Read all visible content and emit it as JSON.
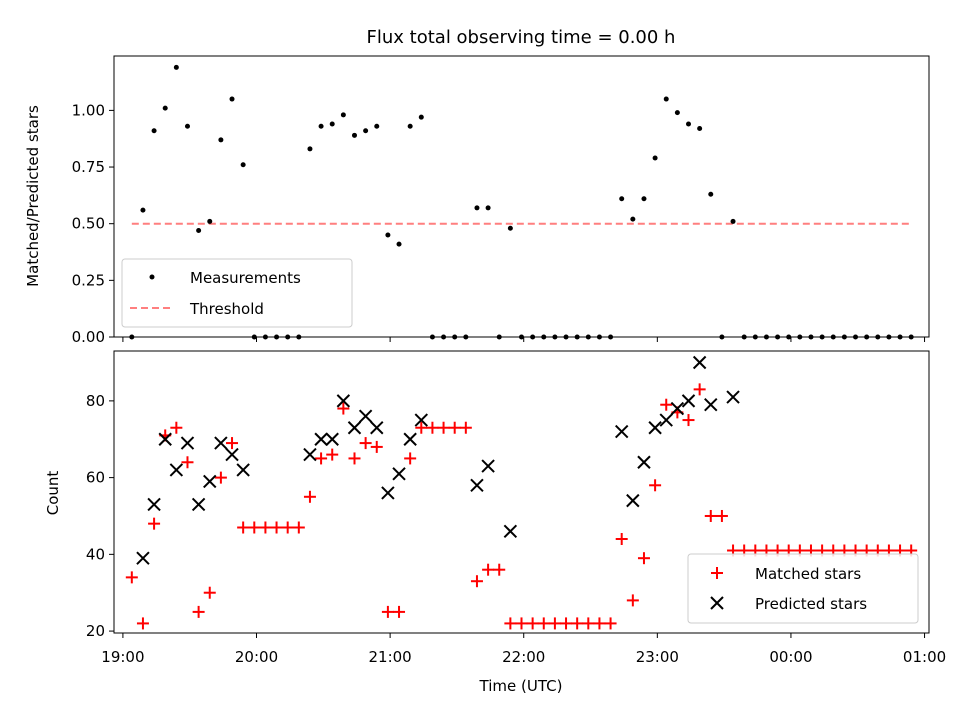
{
  "chart_data": [
    {
      "type": "scatter",
      "title": "Flux total observing time = 0.00 h",
      "xlabel": "",
      "ylabel": "Matched/Predicted stars",
      "ylim": [
        0,
        1.24
      ],
      "yticks": [
        "0.00",
        "0.25",
        "0.50",
        "0.75",
        "1.00"
      ],
      "legend_position": "lower-left",
      "series": [
        {
          "name": "Measurements",
          "marker": "dot",
          "color": "#000000",
          "points": [
            [
              "19:04",
              0.0
            ],
            [
              "19:09",
              0.56
            ],
            [
              "19:14",
              0.91
            ],
            [
              "19:19",
              1.01
            ],
            [
              "19:24",
              1.19
            ],
            [
              "19:29",
              0.93
            ],
            [
              "19:34",
              0.47
            ],
            [
              "19:39",
              0.51
            ],
            [
              "19:44",
              0.87
            ],
            [
              "19:49",
              1.05
            ],
            [
              "19:54",
              0.76
            ],
            [
              "19:59",
              0.0
            ],
            [
              "20:04",
              0.0
            ],
            [
              "20:09",
              0.0
            ],
            [
              "20:14",
              0.0
            ],
            [
              "20:19",
              0.0
            ],
            [
              "20:24",
              0.83
            ],
            [
              "20:29",
              0.93
            ],
            [
              "20:34",
              0.94
            ],
            [
              "20:39",
              0.98
            ],
            [
              "20:44",
              0.89
            ],
            [
              "20:49",
              0.91
            ],
            [
              "20:54",
              0.93
            ],
            [
              "20:59",
              0.45
            ],
            [
              "21:04",
              0.41
            ],
            [
              "21:09",
              0.93
            ],
            [
              "21:14",
              0.97
            ],
            [
              "21:19",
              0.0
            ],
            [
              "21:24",
              0.0
            ],
            [
              "21:29",
              0.0
            ],
            [
              "21:34",
              0.0
            ],
            [
              "21:39",
              0.57
            ],
            [
              "21:44",
              0.57
            ],
            [
              "21:49",
              0.0
            ],
            [
              "21:54",
              0.48
            ],
            [
              "21:59",
              0.0
            ],
            [
              "22:04",
              0.0
            ],
            [
              "22:09",
              0.0
            ],
            [
              "22:14",
              0.0
            ],
            [
              "22:19",
              0.0
            ],
            [
              "22:24",
              0.0
            ],
            [
              "22:29",
              0.0
            ],
            [
              "22:34",
              0.0
            ],
            [
              "22:39",
              0.0
            ],
            [
              "22:44",
              0.61
            ],
            [
              "22:49",
              0.52
            ],
            [
              "22:54",
              0.61
            ],
            [
              "22:59",
              0.79
            ],
            [
              "23:04",
              1.05
            ],
            [
              "23:09",
              0.99
            ],
            [
              "23:14",
              0.94
            ],
            [
              "23:19",
              0.92
            ],
            [
              "23:24",
              0.63
            ],
            [
              "23:29",
              0.0
            ],
            [
              "23:34",
              0.51
            ],
            [
              "23:39",
              0.0
            ],
            [
              "23:44",
              0.0
            ],
            [
              "23:49",
              0.0
            ],
            [
              "23:54",
              0.0
            ],
            [
              "23:59",
              0.0
            ],
            [
              "00:04",
              0.0
            ],
            [
              "00:09",
              0.0
            ],
            [
              "00:14",
              0.0
            ],
            [
              "00:19",
              0.0
            ],
            [
              "00:24",
              0.0
            ],
            [
              "00:29",
              0.0
            ],
            [
              "00:34",
              0.0
            ],
            [
              "00:39",
              0.0
            ],
            [
              "00:44",
              0.0
            ],
            [
              "00:49",
              0.0
            ],
            [
              "00:54",
              0.0
            ]
          ]
        },
        {
          "name": "Threshold",
          "style": "dashed",
          "color": "#ff7f7f",
          "points": [
            [
              "19:04",
              0.5
            ],
            [
              "00:54",
              0.5
            ]
          ]
        }
      ]
    },
    {
      "type": "scatter",
      "title": "",
      "xlabel": "Time (UTC)",
      "ylabel": "Count",
      "ylim": [
        19.5,
        93
      ],
      "yticks": [
        "20",
        "40",
        "60",
        "80"
      ],
      "xticks": [
        "19:00",
        "20:00",
        "21:00",
        "22:00",
        "23:00",
        "00:00",
        "01:00"
      ],
      "xlim": [
        "18:56",
        "01:02"
      ],
      "legend_position": "lower-right",
      "series": [
        {
          "name": "Matched stars",
          "marker": "plus",
          "color": "#ff0000",
          "points": [
            [
              "19:04",
              34
            ],
            [
              "19:09",
              22
            ],
            [
              "19:14",
              48
            ],
            [
              "19:19",
              71
            ],
            [
              "19:24",
              73
            ],
            [
              "19:29",
              64
            ],
            [
              "19:34",
              25
            ],
            [
              "19:39",
              30
            ],
            [
              "19:44",
              60
            ],
            [
              "19:49",
              69
            ],
            [
              "19:54",
              47
            ],
            [
              "19:59",
              47
            ],
            [
              "20:04",
              47
            ],
            [
              "20:09",
              47
            ],
            [
              "20:14",
              47
            ],
            [
              "20:19",
              47
            ],
            [
              "20:24",
              55
            ],
            [
              "20:29",
              65
            ],
            [
              "20:34",
              66
            ],
            [
              "20:39",
              78
            ],
            [
              "20:44",
              65
            ],
            [
              "20:49",
              69
            ],
            [
              "20:54",
              68
            ],
            [
              "20:59",
              25
            ],
            [
              "21:04",
              25
            ],
            [
              "21:09",
              65
            ],
            [
              "21:14",
              73
            ],
            [
              "21:19",
              73
            ],
            [
              "21:24",
              73
            ],
            [
              "21:29",
              73
            ],
            [
              "21:34",
              73
            ],
            [
              "21:39",
              33
            ],
            [
              "21:44",
              36
            ],
            [
              "21:49",
              36
            ],
            [
              "21:54",
              22
            ],
            [
              "21:59",
              22
            ],
            [
              "22:04",
              22
            ],
            [
              "22:09",
              22
            ],
            [
              "22:14",
              22
            ],
            [
              "22:19",
              22
            ],
            [
              "22:24",
              22
            ],
            [
              "22:29",
              22
            ],
            [
              "22:34",
              22
            ],
            [
              "22:39",
              22
            ],
            [
              "22:44",
              44
            ],
            [
              "22:49",
              28
            ],
            [
              "22:54",
              39
            ],
            [
              "22:59",
              58
            ],
            [
              "23:04",
              79
            ],
            [
              "23:09",
              77
            ],
            [
              "23:14",
              75
            ],
            [
              "23:19",
              83
            ],
            [
              "23:24",
              50
            ],
            [
              "23:29",
              50
            ],
            [
              "23:34",
              41
            ],
            [
              "23:39",
              41
            ],
            [
              "23:44",
              41
            ],
            [
              "23:49",
              41
            ],
            [
              "23:54",
              41
            ],
            [
              "23:59",
              41
            ],
            [
              "00:04",
              41
            ],
            [
              "00:09",
              41
            ],
            [
              "00:14",
              41
            ],
            [
              "00:19",
              41
            ],
            [
              "00:24",
              41
            ],
            [
              "00:29",
              41
            ],
            [
              "00:34",
              41
            ],
            [
              "00:39",
              41
            ],
            [
              "00:44",
              41
            ],
            [
              "00:49",
              41
            ],
            [
              "00:54",
              41
            ]
          ]
        },
        {
          "name": "Predicted stars",
          "marker": "x",
          "color": "#000000",
          "points": [
            [
              "19:09",
              39
            ],
            [
              "19:14",
              53
            ],
            [
              "19:19",
              70
            ],
            [
              "19:24",
              62
            ],
            [
              "19:29",
              69
            ],
            [
              "19:34",
              53
            ],
            [
              "19:39",
              59
            ],
            [
              "19:44",
              69
            ],
            [
              "19:49",
              66
            ],
            [
              "19:54",
              62
            ],
            [
              "20:24",
              66
            ],
            [
              "20:29",
              70
            ],
            [
              "20:34",
              70
            ],
            [
              "20:39",
              80
            ],
            [
              "20:44",
              73
            ],
            [
              "20:49",
              76
            ],
            [
              "20:54",
              73
            ],
            [
              "20:59",
              56
            ],
            [
              "21:04",
              61
            ],
            [
              "21:09",
              70
            ],
            [
              "21:14",
              75
            ],
            [
              "21:39",
              58
            ],
            [
              "21:44",
              63
            ],
            [
              "21:54",
              46
            ],
            [
              "22:44",
              72
            ],
            [
              "22:49",
              54
            ],
            [
              "22:54",
              64
            ],
            [
              "22:59",
              73
            ],
            [
              "23:04",
              75
            ],
            [
              "23:09",
              78
            ],
            [
              "23:14",
              80
            ],
            [
              "23:19",
              90
            ],
            [
              "23:24",
              79
            ],
            [
              "23:34",
              81
            ]
          ]
        }
      ]
    }
  ]
}
